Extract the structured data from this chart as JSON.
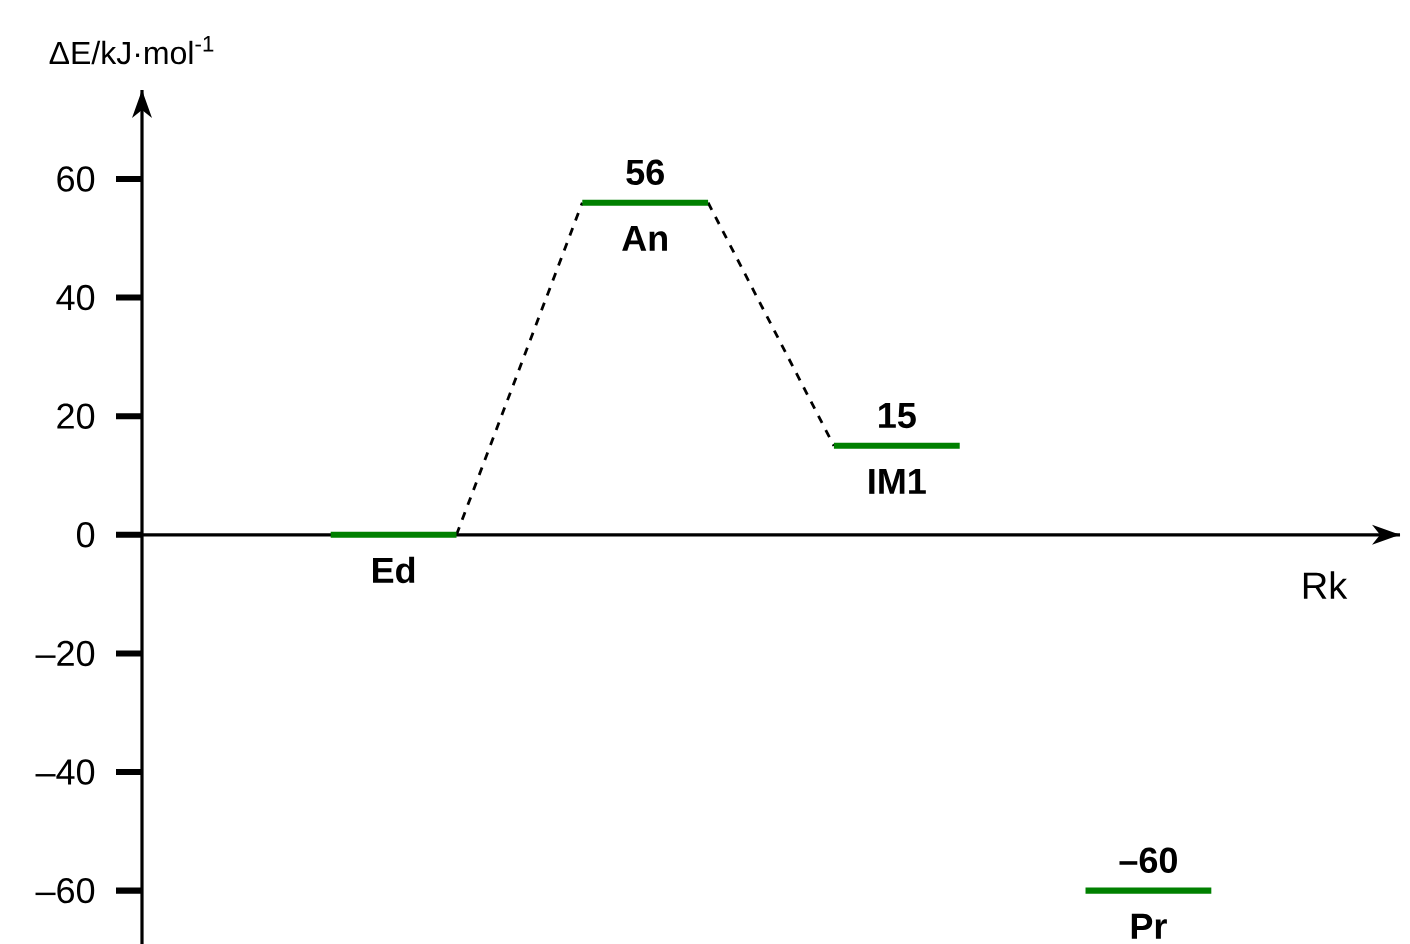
{
  "chart_data": {
    "type": "line",
    "ylabel": "ΔE/kJ·mol$^{-1}$",
    "xlabel": "Rk",
    "categories": [
      null,
      null,
      null,
      null,
      null,
      null,
      null,
      null,
      null,
      null
    ],
    "series": [
      {
        "color": "#000000",
        "line_style": "dashed",
        "values": [
          null,
          null,
          0,
          56,
          null,
          null,
          null,
          null,
          null,
          null
        ]
      },
      {
        "color": "#000000",
        "line_style": "dashed",
        "values": [
          null,
          null,
          null,
          null,
          56,
          15,
          null,
          null,
          null,
          null
        ]
      },
      {
        "name": "Ed",
        "color": "#008000",
        "values": [
          null,
          0,
          0,
          null,
          null,
          null,
          null,
          null,
          null,
          null
        ]
      },
      {
        "name": "An",
        "color": "#008000",
        "values": [
          null,
          null,
          null,
          56,
          56,
          null,
          null,
          null,
          null,
          null
        ],
        "value_labels": [
          null,
          null,
          null,
          "56",
          null,
          null,
          null,
          null,
          null,
          null
        ]
      },
      {
        "name": "IM1",
        "color": "#008000",
        "values": [
          null,
          null,
          null,
          null,
          null,
          15,
          15,
          null,
          null,
          null
        ],
        "value_labels": [
          null,
          null,
          null,
          null,
          null,
          "15",
          null,
          null,
          null,
          null
        ]
      },
      {
        "name": "Pr",
        "color": "#008000",
        "values": [
          null,
          null,
          null,
          null,
          null,
          null,
          null,
          -60,
          -60,
          null
        ],
        "value_labels": [
          null,
          null,
          null,
          null,
          null,
          null,
          null,
          "–60",
          null,
          null
        ]
      }
    ],
    "ylim": [
      -69,
      75
    ],
    "yticks": [
      {
        "value": -60,
        "label": "–60"
      },
      {
        "value": -40,
        "label": "–40"
      },
      {
        "value": -20,
        "label": "–20"
      },
      0,
      20,
      40,
      60
    ],
    "tick_labels": "y"
  }
}
